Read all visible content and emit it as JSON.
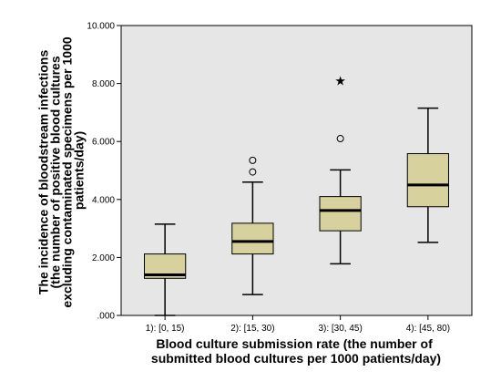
{
  "chart_data": {
    "type": "boxplot",
    "title": "",
    "xlabel_lines": [
      "Blood culture submission rate (the number of",
      "submitted blood cultures per 1000 patients/day)"
    ],
    "ylabel_lines": [
      "The incidence of bloodstream infections",
      "(the number of positive blood cultures",
      "excluding contaminated specimens per 1000",
      "patients/day)"
    ],
    "ylim": [
      0,
      10
    ],
    "y_ticks": [
      0,
      2,
      4,
      6,
      8,
      10
    ],
    "y_tick_labels": [
      ".000",
      "2.000",
      "4.000",
      "6.000",
      "8.000",
      "10.000"
    ],
    "categories": [
      "1): [0, 15)",
      "2): [15, 30)",
      "3): [30, 45)",
      "4): [45, 80)"
    ],
    "boxes": [
      {
        "whisker_low": 0.0,
        "q1": 1.28,
        "median": 1.4,
        "q3": 2.12,
        "whisker_high": 3.15,
        "outliers": [],
        "extremes": []
      },
      {
        "whisker_low": 0.72,
        "q1": 2.12,
        "median": 2.55,
        "q3": 3.18,
        "whisker_high": 4.6,
        "outliers": [
          4.95,
          5.35
        ],
        "extremes": []
      },
      {
        "whisker_low": 1.78,
        "q1": 2.92,
        "median": 3.62,
        "q3": 4.1,
        "whisker_high": 5.02,
        "outliers": [
          6.1
        ],
        "extremes": [
          8.1
        ]
      },
      {
        "whisker_low": 2.52,
        "q1": 3.75,
        "median": 4.5,
        "q3": 5.58,
        "whisker_high": 7.15,
        "outliers": [],
        "extremes": []
      }
    ],
    "colors": {
      "plot_background": "#e6e6e6",
      "box_fill": "#d7d19e",
      "stroke": "#000000"
    },
    "grid": false,
    "legend": "none"
  }
}
